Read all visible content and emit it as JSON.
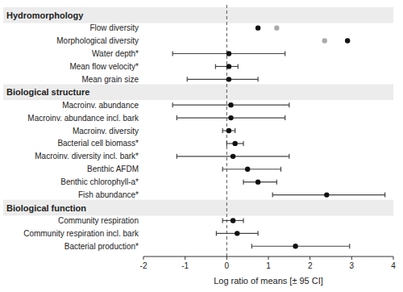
{
  "chart_data": {
    "type": "forest",
    "orientation": "horizontal",
    "xlabel": "Log ratio of means [± 95 CI]",
    "xlim": [
      -2.0,
      4.0
    ],
    "xticks": [
      -2,
      -1,
      0,
      1,
      2,
      3,
      4
    ],
    "reference_x": 0,
    "groups": [
      {
        "label": "Hydromorphology",
        "categories": [
          "Flow diversity",
          "Morphological diversity",
          "Water depth*",
          "Mean flow velocity*",
          "Mean grain size"
        ],
        "series": [
          {
            "color": "#111111",
            "values": [
              0.75,
              2.9,
              0.05,
              0.05,
              0.05
            ],
            "error_lo": [
              null,
              null,
              1.35,
              0.32,
              1.0
            ],
            "error_hi": [
              null,
              null,
              1.35,
              0.22,
              0.7
            ]
          },
          {
            "color": "#aaaaaa",
            "values": [
              1.2,
              2.35,
              null,
              null,
              null
            ]
          }
        ]
      },
      {
        "label": "Biological structure",
        "categories": [
          "Macroinv. abundance",
          "Macroinv. abundance  incl. bark",
          "Macroinv. diversity",
          "Bacterial cell biomass*",
          "Macroinv. diversity  incl. bark*",
          "Benthic AFDM",
          "Benthic chlorophyll-a*",
          "Fish abundance*"
        ],
        "series": [
          {
            "color": "#111111",
            "values": [
              0.1,
              0.1,
              0.05,
              0.2,
              0.15,
              0.5,
              0.75,
              2.4
            ],
            "error_lo": [
              1.4,
              1.3,
              0.15,
              0.2,
              1.35,
              0.6,
              0.35,
              1.3
            ],
            "error_hi": [
              1.4,
              1.3,
              0.15,
              0.2,
              1.35,
              0.8,
              0.45,
              1.4
            ]
          }
        ]
      },
      {
        "label": "Biological function",
        "categories": [
          "Community respiration",
          "Community respiration incl. bark",
          "Bacterial production*"
        ],
        "series": [
          {
            "color": "#111111",
            "values": [
              0.15,
              0.25,
              1.65
            ],
            "error_lo": [
              0.25,
              0.5,
              1.05
            ],
            "error_hi": [
              0.25,
              0.5,
              1.3
            ]
          }
        ]
      }
    ]
  }
}
